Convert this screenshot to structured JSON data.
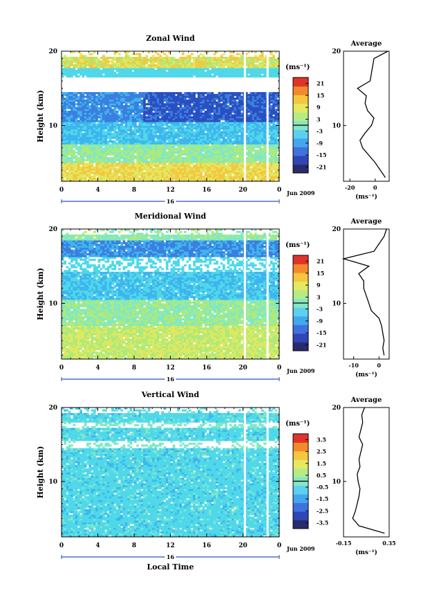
{
  "figure": {
    "xlabel": "Local Time",
    "date_label": "Jun 2009",
    "day_label": "16",
    "unit_label": "(ms⁻¹)"
  },
  "chart_data": [
    {
      "type": "heatmap",
      "title": "Zonal Wind",
      "ylabel": "Height (km)",
      "xlim": [
        0,
        24
      ],
      "ylim": [
        2.5,
        20
      ],
      "x_ticks": [
        "0",
        "4",
        "8",
        "12",
        "16",
        "20",
        "0"
      ],
      "y_ticks": [
        10,
        20
      ],
      "colorbar": {
        "ticks": [
          "21",
          "15",
          "9",
          "3",
          "-3",
          "-9",
          "-15",
          "-21"
        ],
        "range": [
          -24,
          24
        ]
      },
      "profile_panel": {
        "title": "Average",
        "xlim": [
          -25,
          11
        ],
        "x_ticks": [
          "-20",
          "0"
        ],
        "x_tick_values": [
          -20,
          0
        ],
        "xlabel": "(ms⁻¹)",
        "heights": [
          3,
          4,
          5,
          6,
          7,
          8,
          9,
          10,
          11,
          12,
          13,
          14,
          15,
          16,
          17,
          18,
          19,
          20
        ],
        "values": [
          8,
          4,
          0,
          -5,
          -10,
          -12,
          -8,
          -3,
          -1,
          -6,
          -8,
          -7,
          -14,
          -4,
          -3,
          -2,
          -1,
          10
        ]
      }
    },
    {
      "type": "heatmap",
      "title": "Meridional Wind",
      "ylabel": "Height (km)",
      "xlim": [
        0,
        24
      ],
      "ylim": [
        2.5,
        20
      ],
      "x_ticks": [
        "0",
        "4",
        "8",
        "12",
        "16",
        "20",
        "0"
      ],
      "y_ticks": [
        10,
        20
      ],
      "colorbar": {
        "ticks": [
          "21",
          "15",
          "9",
          "3",
          "-3",
          "-9",
          "-15",
          "-21"
        ],
        "range": [
          -24,
          24
        ]
      },
      "profile_panel": {
        "title": "Average",
        "xlim": [
          -14,
          4
        ],
        "x_ticks": [
          "-10",
          "0"
        ],
        "x_tick_values": [
          -10,
          0
        ],
        "xlabel": "(ms⁻¹)",
        "heights": [
          3,
          4,
          5,
          6,
          7,
          8,
          9,
          10,
          11,
          12,
          13,
          14,
          15,
          16,
          17,
          18,
          19,
          20
        ],
        "values": [
          2,
          1.5,
          2,
          1.5,
          1,
          0,
          -3,
          -4,
          -5,
          -6,
          -6,
          -8,
          -4,
          -14,
          -2,
          0,
          2,
          3
        ]
      }
    },
    {
      "type": "heatmap",
      "title": "Vertical Wind",
      "ylabel": "Height (km)",
      "xlim": [
        0,
        24
      ],
      "ylim": [
        2.5,
        20
      ],
      "x_ticks": [
        "0",
        "4",
        "8",
        "12",
        "16",
        "20",
        "0"
      ],
      "y_ticks": [
        10,
        20
      ],
      "colorbar": {
        "ticks": [
          "3.5",
          "2.5",
          "1.5",
          "0.5",
          "-0.5",
          "-1.5",
          "-2.5",
          "-3.5"
        ],
        "range": [
          -4,
          4
        ]
      },
      "profile_panel": {
        "title": "Average",
        "xlim": [
          -0.15,
          0.35
        ],
        "x_ticks": [
          "-0.15",
          "0.35"
        ],
        "x_tick_values": [
          -0.15,
          0.35
        ],
        "xlabel": "(ms⁻¹)",
        "heights": [
          3,
          4,
          5,
          6,
          7,
          8,
          9,
          10,
          11,
          12,
          13,
          14,
          15,
          16,
          17,
          18,
          19,
          20
        ],
        "values": [
          0.3,
          0.02,
          -0.05,
          -0.02,
          0.0,
          0.02,
          0.03,
          0.01,
          0.0,
          0.03,
          0.02,
          0.04,
          0.06,
          0.02,
          0.04,
          0.06,
          0.05,
          0.08
        ]
      }
    }
  ]
}
